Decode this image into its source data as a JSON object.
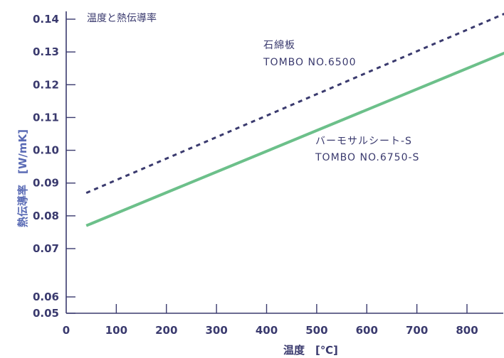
{
  "chart_data": {
    "type": "line",
    "title": "温度と熱伝導率",
    "xlabel": "温度　[℃]",
    "ylabel": "熱伝導率　[W/mK]",
    "xlim": [
      0,
      880
    ],
    "ylim": [
      0.05,
      0.145
    ],
    "x_ticks": [
      "0",
      "100",
      "200",
      "300",
      "400",
      "500",
      "600",
      "700",
      "800"
    ],
    "x_tick_values": [
      0,
      100,
      200,
      300,
      400,
      500,
      600,
      700,
      800
    ],
    "y_ticks": [
      "0.05",
      "0.06",
      "0.07",
      "0.08",
      "0.09",
      "0.10",
      "0.11",
      "0.12",
      "0.13",
      "0.14"
    ],
    "y_tick_values": [
      0.05,
      0.06,
      0.07,
      0.08,
      0.09,
      0.1,
      0.11,
      0.12,
      0.13,
      0.14
    ],
    "grid": false,
    "series": [
      {
        "name": "石綿板 TOMBO NO.6500",
        "label_lines": [
          "石綿板",
          "TOMBO NO.6500"
        ],
        "style": "dashed",
        "color": "#3a3a6e",
        "x": [
          40,
          880
        ],
        "y": [
          0.087,
          0.142
        ]
      },
      {
        "name": "バーモサルシート-S TOMBO NO.6750-S",
        "label_lines": [
          "バーモサルシート-S",
          "TOMBO NO.6750-S"
        ],
        "style": "solid",
        "color": "#6cc08a",
        "x": [
          40,
          880
        ],
        "y": [
          0.077,
          0.13
        ]
      }
    ],
    "colors": {
      "axis": "#3a3a6e",
      "text": "#3a3a6e",
      "ylabel": "#5a6bb5"
    }
  }
}
